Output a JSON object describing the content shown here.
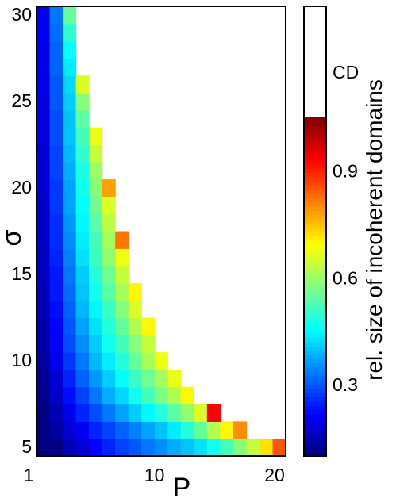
{
  "chart_data": [
    {
      "type": "heatmap",
      "xlabel": "P",
      "ylabel": "σ",
      "x_ticks": [
        "1",
        "10",
        "20"
      ],
      "y_ticks": [
        "5",
        "10",
        "15",
        "20",
        "25",
        "30"
      ],
      "xlim": [
        1,
        20
      ],
      "ylim": [
        5,
        30
      ],
      "grid": false,
      "note_white_region": "CD",
      "cells": {
        "x": [
          1,
          2,
          3,
          4,
          5,
          6,
          7,
          8,
          9,
          10,
          11,
          12,
          13,
          14,
          15,
          16,
          17,
          18,
          19
        ],
        "y": [
          5,
          6,
          7,
          8,
          9,
          10,
          11,
          12,
          13,
          14,
          15,
          16,
          17,
          18,
          19,
          20,
          21,
          22,
          23,
          24,
          25,
          26,
          27,
          28,
          29,
          30
        ],
        "values": [
          [
            0.05,
            0.1,
            0.15,
            0.18,
            0.22,
            0.25,
            0.28,
            0.3,
            0.33,
            0.35,
            0.38,
            0.4,
            0.43,
            0.47,
            0.52,
            0.58,
            0.64,
            0.72,
            0.85
          ],
          [
            0.08,
            0.13,
            0.18,
            0.21,
            0.25,
            0.28,
            0.31,
            0.34,
            0.37,
            0.4,
            0.44,
            0.49,
            0.55,
            0.62,
            0.7,
            0.8,
            null,
            null,
            null
          ],
          [
            0.1,
            0.15,
            0.2,
            0.25,
            0.29,
            0.33,
            0.37,
            0.41,
            0.45,
            0.49,
            0.54,
            0.59,
            0.66,
            0.93,
            null,
            null,
            null,
            null,
            null
          ],
          [
            0.11,
            0.17,
            0.23,
            0.28,
            0.33,
            0.38,
            0.42,
            0.47,
            0.52,
            0.57,
            0.62,
            0.7,
            null,
            null,
            null,
            null,
            null,
            null,
            null
          ],
          [
            0.12,
            0.18,
            0.25,
            0.31,
            0.36,
            0.41,
            0.46,
            0.51,
            0.56,
            0.61,
            0.68,
            null,
            null,
            null,
            null,
            null,
            null,
            null,
            null
          ],
          [
            0.13,
            0.2,
            0.27,
            0.33,
            0.39,
            0.44,
            0.49,
            0.55,
            0.61,
            0.68,
            null,
            null,
            null,
            null,
            null,
            null,
            null,
            null,
            null
          ],
          [
            0.14,
            0.21,
            0.29,
            0.35,
            0.41,
            0.47,
            0.52,
            0.58,
            0.64,
            null,
            null,
            null,
            null,
            null,
            null,
            null,
            null,
            null,
            null
          ],
          [
            0.14,
            0.22,
            0.3,
            0.37,
            0.43,
            0.49,
            0.55,
            0.62,
            0.7,
            null,
            null,
            null,
            null,
            null,
            null,
            null,
            null,
            null,
            null
          ],
          [
            0.15,
            0.23,
            0.31,
            0.39,
            0.45,
            0.51,
            0.58,
            0.66,
            null,
            null,
            null,
            null,
            null,
            null,
            null,
            null,
            null,
            null,
            null
          ],
          [
            0.15,
            0.24,
            0.32,
            0.4,
            0.47,
            0.54,
            0.61,
            0.7,
            null,
            null,
            null,
            null,
            null,
            null,
            null,
            null,
            null,
            null,
            null
          ],
          [
            0.16,
            0.24,
            0.33,
            0.41,
            0.49,
            0.56,
            0.64,
            null,
            null,
            null,
            null,
            null,
            null,
            null,
            null,
            null,
            null,
            null,
            null
          ],
          [
            0.16,
            0.25,
            0.34,
            0.43,
            0.51,
            0.59,
            0.68,
            null,
            null,
            null,
            null,
            null,
            null,
            null,
            null,
            null,
            null,
            null,
            null
          ],
          [
            0.17,
            0.26,
            0.35,
            0.44,
            0.52,
            0.61,
            0.82,
            null,
            null,
            null,
            null,
            null,
            null,
            null,
            null,
            null,
            null,
            null,
            null
          ],
          [
            0.17,
            0.26,
            0.36,
            0.45,
            0.54,
            0.63,
            null,
            null,
            null,
            null,
            null,
            null,
            null,
            null,
            null,
            null,
            null,
            null,
            null
          ],
          [
            0.17,
            0.27,
            0.37,
            0.46,
            0.56,
            0.66,
            null,
            null,
            null,
            null,
            null,
            null,
            null,
            null,
            null,
            null,
            null,
            null,
            null
          ],
          [
            0.18,
            0.27,
            0.37,
            0.47,
            0.58,
            0.78,
            null,
            null,
            null,
            null,
            null,
            null,
            null,
            null,
            null,
            null,
            null,
            null,
            null
          ],
          [
            0.18,
            0.28,
            0.38,
            0.48,
            0.6,
            null,
            null,
            null,
            null,
            null,
            null,
            null,
            null,
            null,
            null,
            null,
            null,
            null,
            null
          ],
          [
            0.18,
            0.28,
            0.39,
            0.5,
            0.64,
            null,
            null,
            null,
            null,
            null,
            null,
            null,
            null,
            null,
            null,
            null,
            null,
            null,
            null
          ],
          [
            0.19,
            0.29,
            0.4,
            0.52,
            0.68,
            null,
            null,
            null,
            null,
            null,
            null,
            null,
            null,
            null,
            null,
            null,
            null,
            null,
            null
          ],
          [
            0.19,
            0.29,
            0.4,
            0.54,
            null,
            null,
            null,
            null,
            null,
            null,
            null,
            null,
            null,
            null,
            null,
            null,
            null,
            null,
            null
          ],
          [
            0.19,
            0.3,
            0.41,
            0.58,
            null,
            null,
            null,
            null,
            null,
            null,
            null,
            null,
            null,
            null,
            null,
            null,
            null,
            null,
            null
          ],
          [
            0.2,
            0.3,
            0.42,
            0.66,
            null,
            null,
            null,
            null,
            null,
            null,
            null,
            null,
            null,
            null,
            null,
            null,
            null,
            null,
            null
          ],
          [
            0.2,
            0.31,
            0.44,
            null,
            null,
            null,
            null,
            null,
            null,
            null,
            null,
            null,
            null,
            null,
            null,
            null,
            null,
            null,
            null
          ],
          [
            0.2,
            0.31,
            0.46,
            null,
            null,
            null,
            null,
            null,
            null,
            null,
            null,
            null,
            null,
            null,
            null,
            null,
            null,
            null,
            null
          ],
          [
            0.21,
            0.32,
            0.5,
            null,
            null,
            null,
            null,
            null,
            null,
            null,
            null,
            null,
            null,
            null,
            null,
            null,
            null,
            null,
            null
          ],
          [
            0.21,
            0.33,
            0.55,
            null,
            null,
            null,
            null,
            null,
            null,
            null,
            null,
            null,
            null,
            null,
            null,
            null,
            null,
            null,
            null
          ]
        ]
      }
    },
    {
      "type": "colorbar",
      "label": "rel. size of incoherent domains",
      "ticks": [
        "0.3",
        "0.6",
        "0.9"
      ],
      "tick_values": [
        0.3,
        0.6,
        0.9
      ],
      "range": [
        0.1,
        1.05
      ],
      "top_label": "CD",
      "colormap": "jet"
    }
  ]
}
